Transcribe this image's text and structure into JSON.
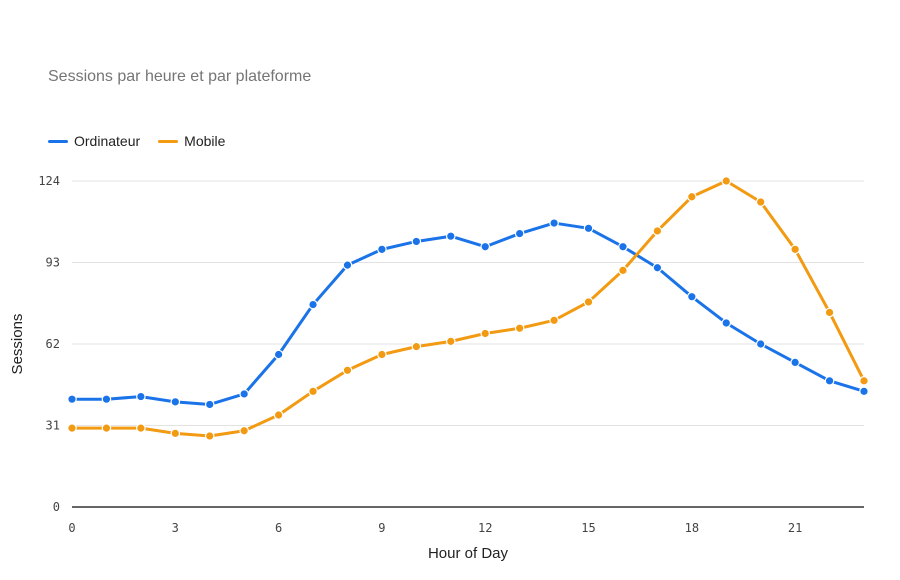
{
  "chart_data": {
    "type": "line",
    "title": "Sessions par heure et par plateforme",
    "xlabel": "Hour of Day",
    "ylabel": "Sessions",
    "x": [
      0,
      1,
      2,
      3,
      4,
      5,
      6,
      7,
      8,
      9,
      10,
      11,
      12,
      13,
      14,
      15,
      16,
      17,
      18,
      19,
      20,
      21,
      22,
      23
    ],
    "xlim": [
      0,
      23
    ],
    "ylim": [
      0,
      124
    ],
    "xticks": [
      0,
      3,
      6,
      9,
      12,
      15,
      18,
      21
    ],
    "yticks": [
      0,
      31,
      62,
      93,
      124
    ],
    "grid": "horizontal",
    "legend_position": "top-left",
    "series": [
      {
        "name": "Ordinateur",
        "color": "#1a73e8",
        "values": [
          41,
          41,
          42,
          40,
          39,
          43,
          58,
          77,
          92,
          98,
          101,
          103,
          99,
          104,
          108,
          106,
          99,
          91,
          80,
          70,
          62,
          55,
          48,
          44
        ]
      },
      {
        "name": "Mobile",
        "color": "#f29a12",
        "values": [
          30,
          30,
          30,
          28,
          27,
          29,
          35,
          44,
          52,
          58,
          61,
          63,
          66,
          68,
          71,
          78,
          90,
          105,
          118,
          124,
          116,
          98,
          74,
          48
        ]
      }
    ]
  }
}
